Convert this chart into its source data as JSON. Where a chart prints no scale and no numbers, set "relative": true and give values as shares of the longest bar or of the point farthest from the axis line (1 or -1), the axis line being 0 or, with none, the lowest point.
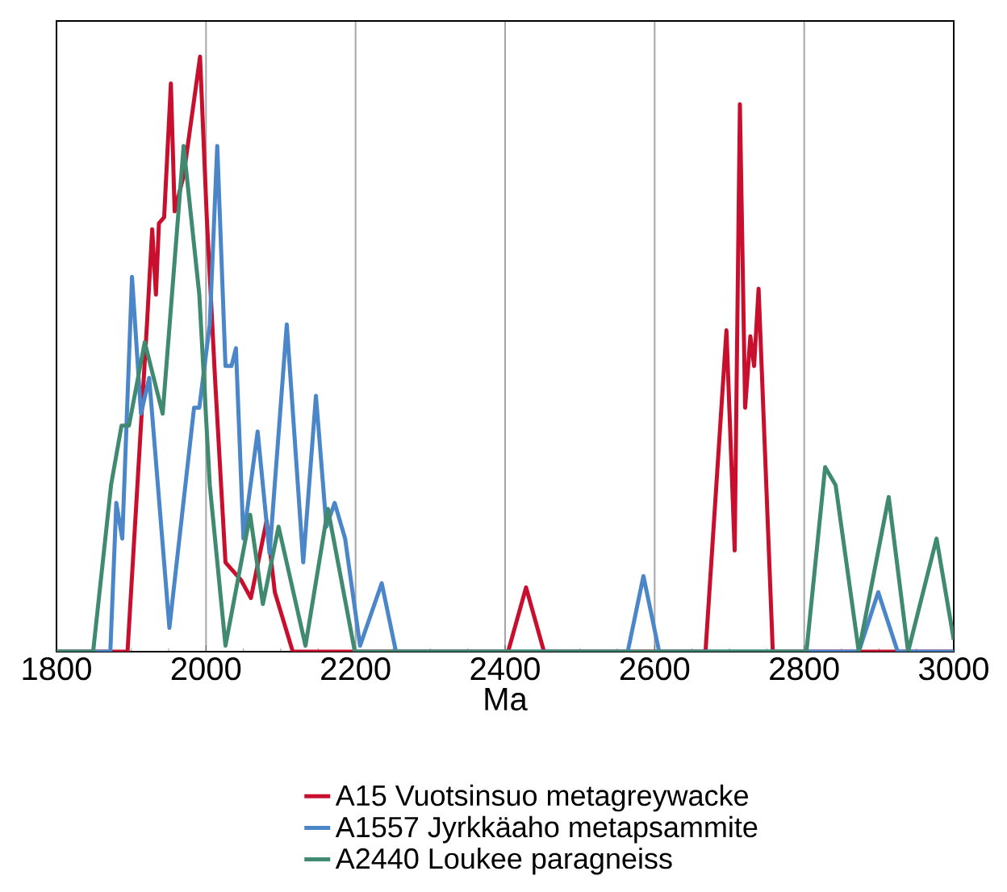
{
  "chart_data": {
    "type": "line",
    "relative": true,
    "xlabel": "Ma",
    "xlim": [
      1800,
      3000
    ],
    "xticks": [
      1800,
      2000,
      2200,
      2400,
      2600,
      2800,
      3000
    ],
    "grid": "x",
    "legend": "bottom",
    "series": [
      {
        "name": "A15 Vuotsinsuo metagreywacke",
        "color": "#c8102e",
        "x": [
          1800,
          1860,
          1895,
          1921,
          1928,
          1933,
          1937,
          1944,
          1953,
          1958,
          1970,
          1992,
          2001,
          2012,
          2026,
          2047,
          2060,
          2081,
          2092,
          2116,
          2404,
          2428,
          2452,
          2668,
          2696,
          2707,
          2714,
          2721,
          2728,
          2733,
          2739,
          2758,
          3000
        ],
        "values": [
          0,
          0,
          0,
          0.55,
          0.71,
          0.6,
          0.72,
          0.73,
          0.955,
          0.74,
          0.8,
          1,
          0.73,
          0.46,
          0.15,
          0.12,
          0.09,
          0.22,
          0.1,
          0,
          0,
          0.108,
          0,
          0,
          0.54,
          0.17,
          0.92,
          0.41,
          0.53,
          0.48,
          0.61,
          0,
          0
        ]
      },
      {
        "name": "A1557 Jyrkkäaho metapsammite",
        "color": "#4a86c8",
        "x": [
          1800,
          1872,
          1880,
          1888,
          1901,
          1913,
          1924,
          1951,
          1984,
          1991,
          2005,
          2015,
          2026,
          2034,
          2040,
          2050,
          2069,
          2085,
          2108,
          2130,
          2147,
          2161,
          2172,
          2186,
          2206,
          2235,
          2254,
          2564,
          2585,
          2606,
          2873,
          2899,
          2925,
          3000
        ],
        "values": [
          0,
          0,
          0.25,
          0.19,
          0.63,
          0.4,
          0.46,
          0.04,
          0.41,
          0.41,
          0.55,
          0.85,
          0.48,
          0.48,
          0.51,
          0.19,
          0.37,
          0.165,
          0.55,
          0.15,
          0.43,
          0.21,
          0.25,
          0.19,
          0.01,
          0.115,
          0,
          0,
          0.127,
          0,
          0,
          0.1,
          0,
          0
        ]
      },
      {
        "name": "A2440 Loukee paragneiss",
        "color": "#3f8a70",
        "x": [
          1800,
          1849,
          1873,
          1887,
          1897,
          1918,
          1942,
          1970,
          1991,
          2005,
          2026,
          2059,
          2076,
          2097,
          2133,
          2163,
          2199,
          2803,
          2828,
          2842,
          2873,
          2913,
          2939,
          2977,
          3000
        ],
        "values": [
          0,
          0,
          0.28,
          0.38,
          0.38,
          0.52,
          0.4,
          0.85,
          0.6,
          0.28,
          0.01,
          0.23,
          0.08,
          0.21,
          0.01,
          0.24,
          0,
          0,
          0.31,
          0.28,
          0,
          0.26,
          0,
          0.19,
          0.02
        ]
      }
    ]
  }
}
